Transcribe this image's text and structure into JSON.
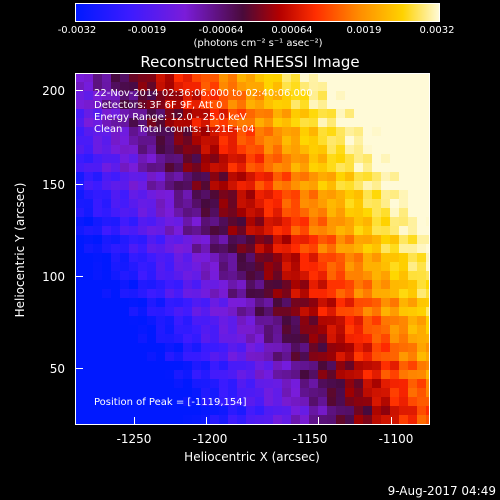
{
  "colorbar": {
    "ticks": [
      "-0.0032",
      "-0.0019",
      "-0.00064",
      "0.00064",
      "0.0019",
      "0.0032"
    ],
    "units": "(photons cm⁻² s⁻¹ asec⁻²)"
  },
  "title": "Reconstructed RHESSI Image",
  "info": {
    "line1": "22-Nov-2014 02:36:06.000 to 02:40:06.000",
    "line2": "Detectors: 3F 6F 9F, Att 0",
    "line3": "Energy Range: 12.0 - 25.0 keV",
    "line4": "Clean     Total counts: 1.21E+04"
  },
  "peak": "Position of Peak = [-1119,154]",
  "axes": {
    "xlabel": "Heliocentric X (arcsec)",
    "ylabel": "Heliocentric Y (arcsec)",
    "xticks": [
      "-1250",
      "-1200",
      "-1150",
      "-1100"
    ],
    "yticks": [
      "200",
      "150",
      "100",
      "50"
    ]
  },
  "date": "9-Aug-2017 04:49"
}
